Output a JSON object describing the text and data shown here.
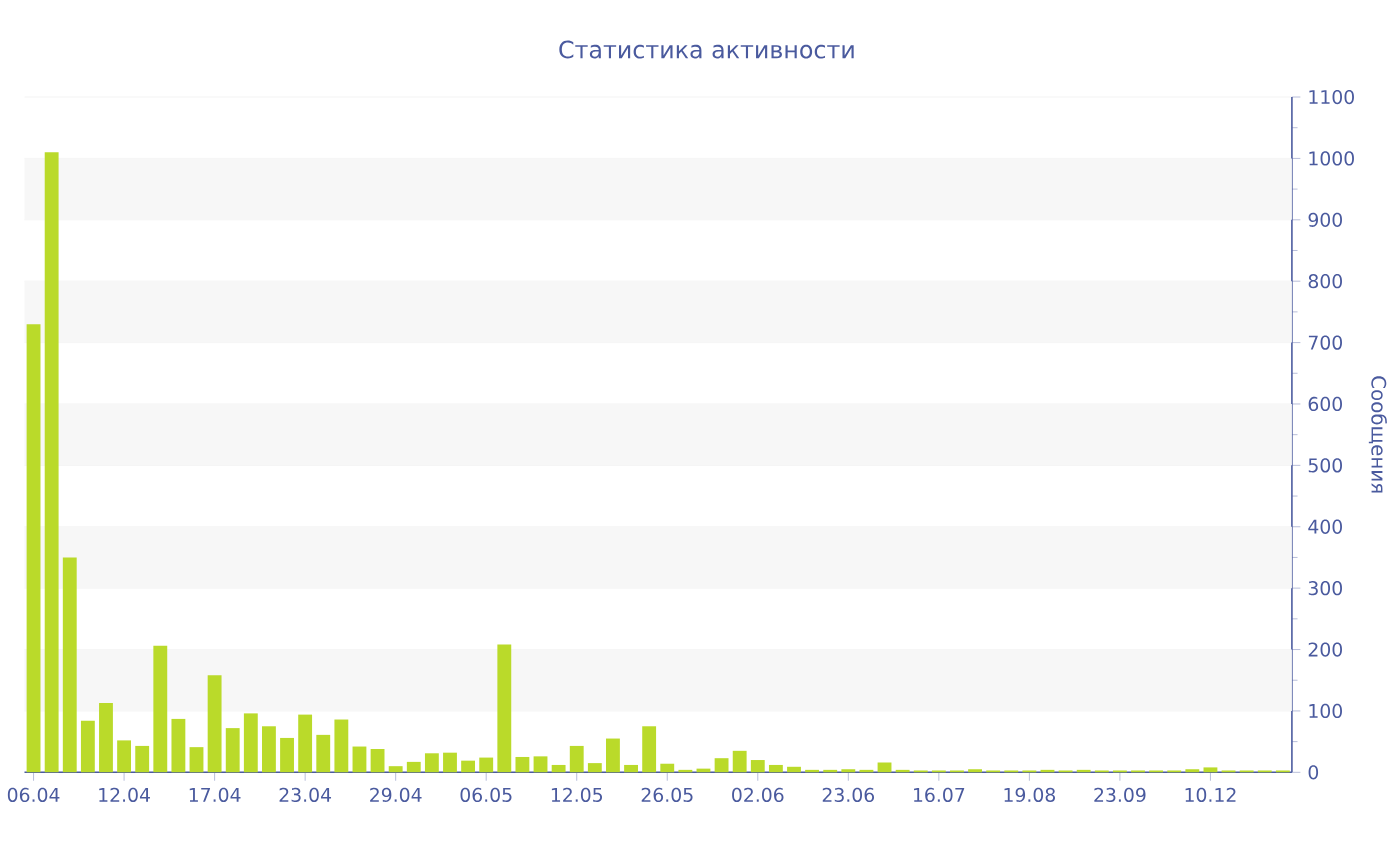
{
  "chart_data": {
    "type": "bar",
    "title": "Статистика активности",
    "ylabel": "Сообщения",
    "categories": [
      "06.04",
      null,
      null,
      null,
      null,
      "12.04",
      null,
      null,
      null,
      null,
      "17.04",
      null,
      null,
      null,
      null,
      "23.04",
      null,
      null,
      null,
      null,
      "29.04",
      null,
      null,
      null,
      null,
      "06.05",
      null,
      null,
      null,
      null,
      "12.05",
      null,
      null,
      null,
      null,
      "26.05",
      null,
      null,
      null,
      null,
      "02.06",
      null,
      null,
      null,
      null,
      "23.06",
      null,
      null,
      null,
      null,
      "16.07",
      null,
      null,
      null,
      null,
      "19.08",
      null,
      null,
      null,
      null,
      "23.09",
      null,
      null,
      null,
      null,
      "10.12",
      null,
      null,
      null,
      null
    ],
    "values": [
      730,
      1010,
      350,
      84,
      113,
      52,
      43,
      206,
      87,
      41,
      158,
      72,
      96,
      75,
      56,
      94,
      61,
      86,
      42,
      38,
      10,
      17,
      31,
      32,
      19,
      24,
      208,
      25,
      26,
      12,
      43,
      15,
      55,
      12,
      75,
      14,
      4,
      6,
      23,
      35,
      20,
      12,
      9,
      4,
      4,
      5,
      4,
      16,
      4,
      3,
      3,
      3,
      5,
      3,
      3,
      3,
      4,
      3,
      4,
      3,
      3,
      3,
      3,
      3,
      5,
      8,
      3,
      3,
      3,
      3
    ],
    "color": "#bada2a",
    "ylim": [
      0,
      1100
    ],
    "yticks": [
      0,
      100,
      200,
      300,
      400,
      500,
      600,
      700,
      800,
      900,
      1000,
      1100
    ],
    "grid": "y"
  }
}
